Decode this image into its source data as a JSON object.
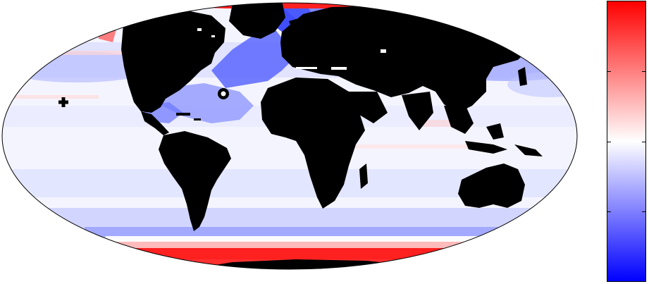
{
  "map": {
    "projection": "mollweide",
    "land_color": "#000000",
    "ocean_colormap": [
      "#0000ff",
      "#ffffff",
      "#ff0000"
    ],
    "markers": [
      {
        "name": "plus-marker",
        "symbol": "plus"
      },
      {
        "name": "circle-marker",
        "symbol": "ring"
      }
    ]
  },
  "colorbar": {
    "colors": [
      "#ff0000",
      "#ffffff",
      "#0000ff"
    ],
    "tick_count": 5
  }
}
